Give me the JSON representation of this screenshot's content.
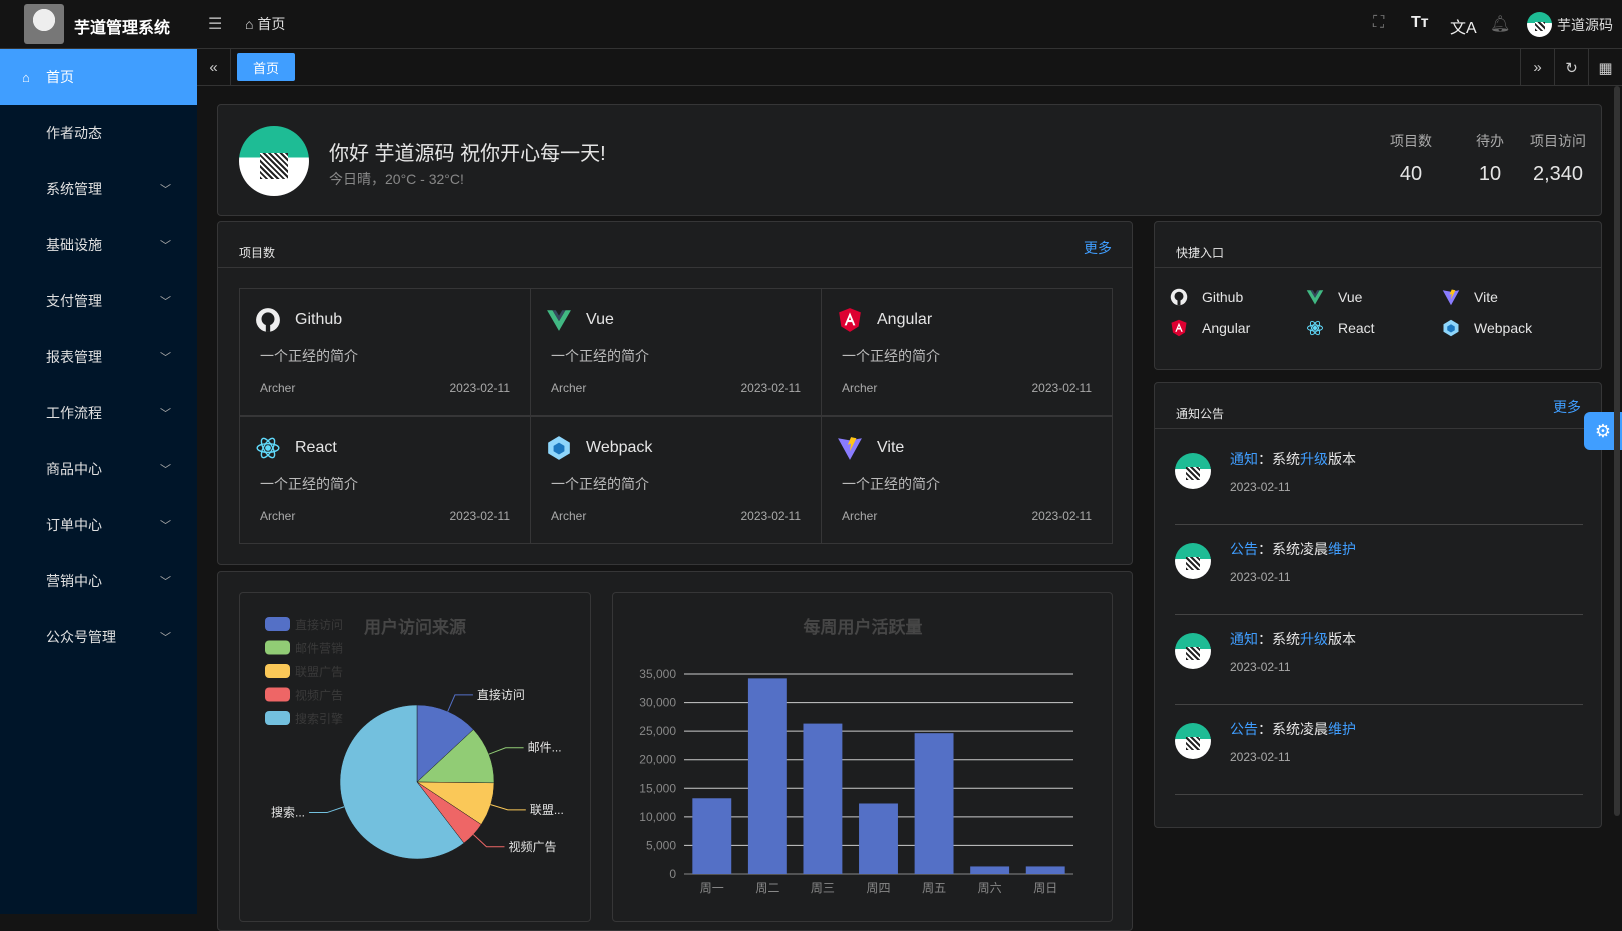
{
  "header": {
    "app_title": "芋道管理系统",
    "breadcrumb": "首页",
    "username": "芋道源码"
  },
  "sidebar": {
    "items": [
      {
        "label": "首页",
        "active": true
      },
      {
        "label": "作者动态"
      },
      {
        "label": "系统管理",
        "expandable": true
      },
      {
        "label": "基础设施",
        "expandable": true
      },
      {
        "label": "支付管理",
        "expandable": true
      },
      {
        "label": "报表管理",
        "expandable": true
      },
      {
        "label": "工作流程",
        "expandable": true
      },
      {
        "label": "商品中心",
        "expandable": true
      },
      {
        "label": "订单中心",
        "expandable": true
      },
      {
        "label": "营销中心",
        "expandable": true
      },
      {
        "label": "公众号管理",
        "expandable": true
      }
    ]
  },
  "tabs": [
    {
      "label": "首页",
      "active": true
    }
  ],
  "welcome": {
    "greeting": "你好 芋道源码 祝你开心每一天!",
    "weather": "今日晴，20°C - 32°C!",
    "stats": [
      {
        "label": "项目数",
        "value": "40"
      },
      {
        "label": "待办",
        "value": "10"
      },
      {
        "label": "项目访问",
        "value": "2,340"
      }
    ]
  },
  "projects": {
    "title": "项目数",
    "more": "更多",
    "items": [
      {
        "name": "Github",
        "icon": "github-icon",
        "desc": "一个正经的简介",
        "author": "Archer",
        "date": "2023-02-11"
      },
      {
        "name": "Vue",
        "icon": "vue-icon",
        "desc": "一个正经的简介",
        "author": "Archer",
        "date": "2023-02-11"
      },
      {
        "name": "Angular",
        "icon": "angular-icon",
        "desc": "一个正经的简介",
        "author": "Archer",
        "date": "2023-02-11"
      },
      {
        "name": "React",
        "icon": "react-icon",
        "desc": "一个正经的简介",
        "author": "Archer",
        "date": "2023-02-11"
      },
      {
        "name": "Webpack",
        "icon": "webpack-icon",
        "desc": "一个正经的简介",
        "author": "Archer",
        "date": "2023-02-11"
      },
      {
        "name": "Vite",
        "icon": "vite-icon",
        "desc": "一个正经的简介",
        "author": "Archer",
        "date": "2023-02-11"
      }
    ]
  },
  "shortcuts": {
    "title": "快捷入口",
    "items": [
      {
        "name": "Github",
        "icon": "github-icon"
      },
      {
        "name": "Vue",
        "icon": "vue-icon"
      },
      {
        "name": "Vite",
        "icon": "vite-icon"
      },
      {
        "name": "Angular",
        "icon": "angular-icon"
      },
      {
        "name": "React",
        "icon": "react-icon"
      },
      {
        "name": "Webpack",
        "icon": "webpack-icon"
      }
    ]
  },
  "notices": {
    "title": "通知公告",
    "more": "更多",
    "items": [
      {
        "type": "通知",
        "sep": "：",
        "t1": "系统",
        "hl": "升级",
        "t2": "版本",
        "date": "2023-02-11"
      },
      {
        "type": "公告",
        "sep": "：",
        "t1": "系统凌晨",
        "hl": "维护",
        "t2": "",
        "date": "2023-02-11"
      },
      {
        "type": "通知",
        "sep": "：",
        "t1": "系统",
        "hl": "升级",
        "t2": "版本",
        "date": "2023-02-11"
      },
      {
        "type": "公告",
        "sep": "：",
        "t1": "系统凌晨",
        "hl": "维护",
        "t2": "",
        "date": "2023-02-11"
      }
    ]
  },
  "colors": {
    "accent": "#409eff",
    "sidebar_bg": "#001529",
    "bar": "#5470c6"
  },
  "chart_data": [
    {
      "type": "pie",
      "title": "用户访问来源",
      "legend_position": "top-left",
      "slices": [
        {
          "name": "直接访问",
          "value": 335,
          "label": "直接访问",
          "color": "#5470c6"
        },
        {
          "name": "邮件营销",
          "value": 310,
          "label": "邮件...",
          "color": "#91cc75"
        },
        {
          "name": "联盟广告",
          "value": 234,
          "label": "联盟...",
          "color": "#fac858"
        },
        {
          "name": "视频广告",
          "value": 135,
          "label": "视频广告",
          "color": "#ee6666"
        },
        {
          "name": "搜索引擎",
          "value": 1548,
          "label": "搜索...",
          "color": "#73c0de"
        }
      ]
    },
    {
      "type": "bar",
      "title": "每周用户活跃量",
      "categories": [
        "周一",
        "周二",
        "周三",
        "周四",
        "周五",
        "周六",
        "周日"
      ],
      "values": [
        13253,
        34235,
        26321,
        12340,
        24643,
        1322,
        1324
      ],
      "ylim": [
        0,
        35000
      ],
      "yticks": [
        "0",
        "5,000",
        "10,000",
        "15,000",
        "20,000",
        "25,000",
        "30,000",
        "35,000"
      ],
      "grid": true
    }
  ]
}
